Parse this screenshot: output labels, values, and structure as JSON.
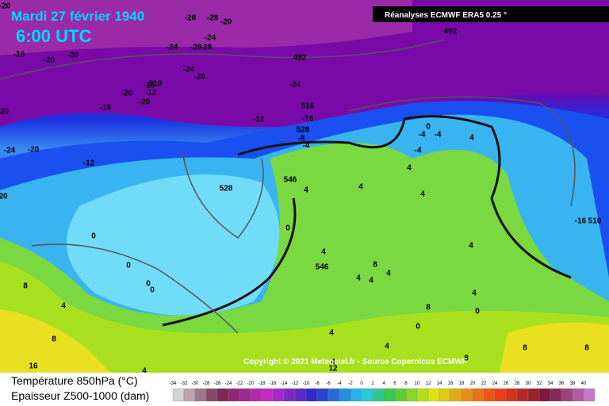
{
  "header": {
    "date": "Mardi 27 février 1940",
    "time": "6:00 UTC",
    "source": "Réanalyses ECMWF ERA5 0.25 °"
  },
  "copyright": "Copyright © 2021 Meteociel.fr - Source Copernicus ECMWF",
  "legend": {
    "title_temperature": "Température 850hPa (°C)",
    "title_thickness": "Epaisseur Z500-1000 (dam)",
    "scale": [
      -34,
      -32,
      -30,
      -28,
      -26,
      -24,
      -22,
      -20,
      -18,
      -16,
      -14,
      -12,
      -10,
      -8,
      -6,
      -4,
      -2,
      0,
      2,
      4,
      6,
      8,
      10,
      12,
      14,
      16,
      18,
      20,
      22,
      24,
      26,
      28,
      30,
      32,
      34,
      36,
      38,
      40
    ]
  },
  "map_labels": [
    -20,
    -28,
    -28,
    -20,
    -24,
    -24,
    -28,
    -28,
    -16,
    -20,
    -20,
    492,
    492,
    -24,
    -20,
    -24,
    -16,
    -12,
    -20,
    -20,
    -16,
    -20,
    510,
    510,
    -12,
    -16,
    -8,
    -4,
    528,
    -24,
    -20,
    -12,
    0,
    -4,
    4,
    -4,
    -4,
    528,
    546,
    4,
    4,
    4,
    4,
    -16,
    510,
    20,
    0,
    0,
    4,
    546,
    0,
    0,
    0,
    8,
    4,
    4,
    4,
    8,
    4,
    4,
    4,
    0,
    0,
    8,
    4,
    4,
    4,
    12,
    8,
    8,
    8,
    4,
    8,
    16
  ]
}
